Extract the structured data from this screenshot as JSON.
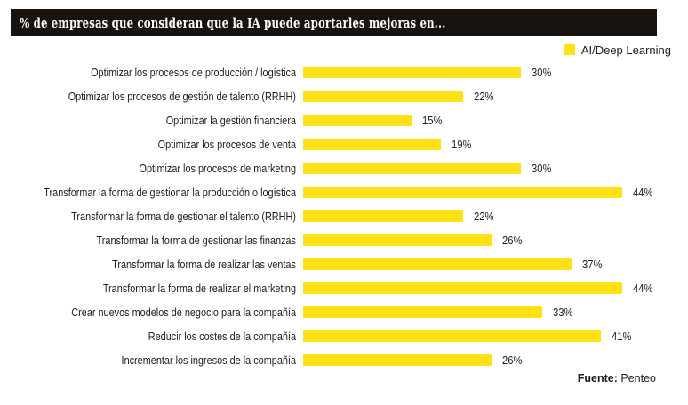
{
  "header": {
    "title": "% de empresas que consideran que la IA puede aportarles mejoras en..."
  },
  "legend": {
    "label": "AI/Deep Learning",
    "color": "#FFE115"
  },
  "footer": {
    "source_label": "Fuente:",
    "source_value": "Penteo"
  },
  "colors": {
    "bar": "#FFE115",
    "header_bg": "#191310",
    "text": "#1D1D1B",
    "title_text": "#FFFFFF"
  },
  "chart_data": {
    "type": "bar",
    "orientation": "horizontal",
    "title": "% de empresas que consideran que la IA puede aportarles mejoras en...",
    "legend_entries": [
      "AI/Deep Learning"
    ],
    "legend_position": "top-right",
    "categories": [
      "Optimizar los procesos de producción / logística",
      "Optimizar los procesos de gestión de talento (RRHH)",
      "Optimizar la gestión financiera",
      "Optimizar los procesos de venta",
      "Optimizar los procesos de marketing",
      "Transformar la forma de gestionar la producción o logística",
      "Transformar la forma de gestionar el talento (RRHH)",
      "Transformar la forma de gestionar las finanzas",
      "Transformar la forma de realizar las ventas",
      "Transformar la forma de realizar el marketing",
      "Crear nuevos modelos de negocio para la compañía",
      "Reducir los costes de la compañía",
      "Incrementar los ingresos de la compañía"
    ],
    "values": [
      30,
      22,
      15,
      19,
      30,
      44,
      22,
      26,
      37,
      44,
      33,
      41,
      26
    ],
    "value_suffix": "%",
    "xlim": [
      0,
      48
    ],
    "grid": false,
    "data_labels": true,
    "source": "Fuente: Penteo"
  }
}
